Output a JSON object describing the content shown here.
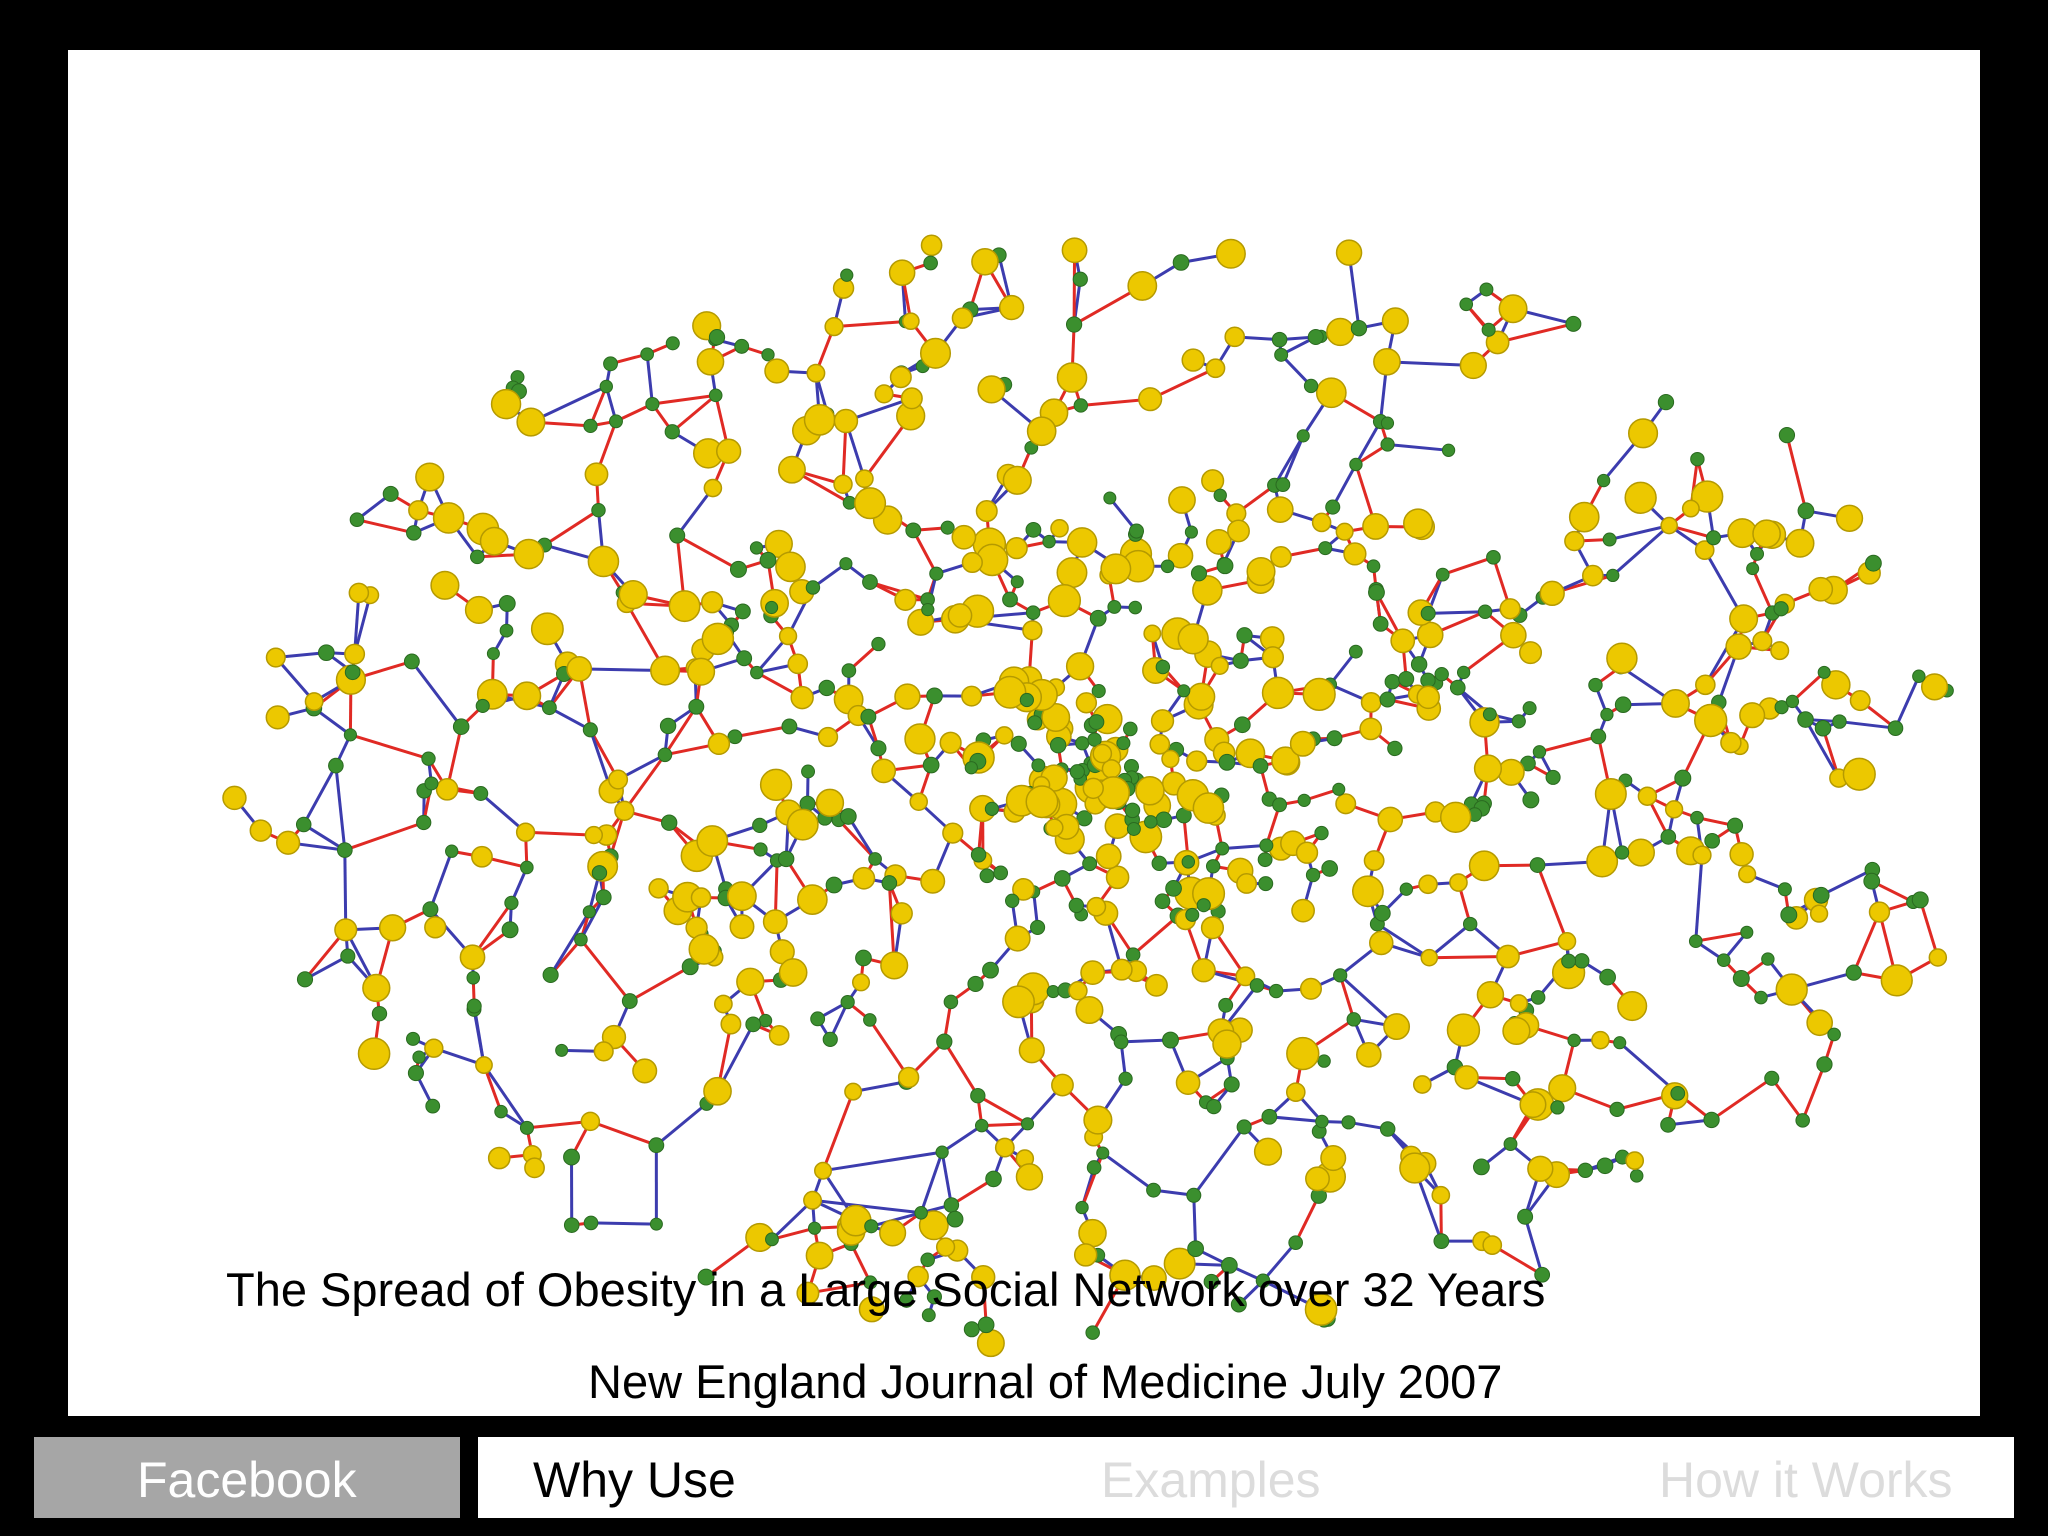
{
  "slide": {
    "caption": {
      "title": "The Spread of Obesity in a Large Social Network over 32 Years",
      "source": "New England Journal of Medicine July 2007"
    }
  },
  "nav": {
    "tabs": [
      "Facebook",
      "Why Use",
      "Examples",
      "How it Works"
    ]
  }
}
